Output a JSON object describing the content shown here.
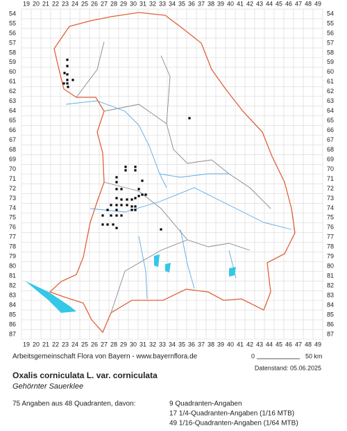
{
  "grid": {
    "columns": [
      19,
      20,
      21,
      22,
      23,
      24,
      25,
      26,
      27,
      28,
      29,
      30,
      31,
      32,
      33,
      34,
      35,
      36,
      37,
      38,
      39,
      40,
      41,
      42,
      43,
      44,
      45,
      46,
      47,
      48,
      49
    ],
    "rows": [
      54,
      55,
      56,
      57,
      58,
      59,
      60,
      61,
      62,
      63,
      64,
      65,
      66,
      67,
      68,
      69,
      70,
      71,
      72,
      73,
      74,
      75,
      76,
      77,
      78,
      79,
      80,
      81,
      82,
      83,
      84,
      85,
      86,
      87
    ]
  },
  "credit": "Arbeitsgemeinschaft Flora von Bayern - www.bayernflora.de",
  "date": "Datenstand: 05.06.2025",
  "title": "Oxalis corniculata L. var. corniculata",
  "subtitle": "Gehörnter Sauerklee",
  "summary": "75 Angaben aus 48 Quadranten, davon:",
  "breakdown": [
    "9 Quadranten-Angaben",
    "17 1/4-Quadranten-Angaben (1/16 MTB)",
    "49 1/16-Quadranten-Angaben (1/64 MTB)"
  ],
  "scale": {
    "start": "0",
    "end": "50 km"
  }
}
